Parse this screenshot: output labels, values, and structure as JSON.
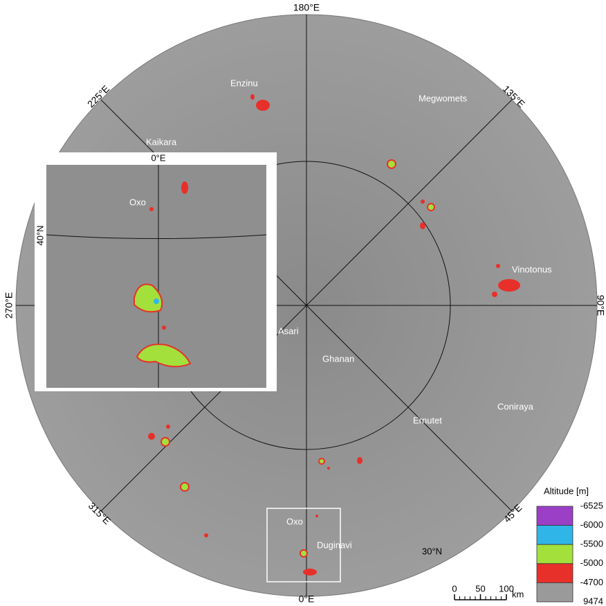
{
  "map": {
    "longitudes": {
      "top": "180°E",
      "upper_left": "225°E",
      "upper_right": "135°E",
      "left": "270°E",
      "right": "90°E",
      "lower_left": "315°E",
      "lower_right": "45°E",
      "bottom": "0°E"
    },
    "latitude_label": "30°N",
    "features": [
      "Enzinu",
      "Megwomets",
      "Kaikara",
      "Vinotonus",
      "Asari",
      "Ghanan",
      "Ernutet",
      "Coniraya",
      "Oxo",
      "Duginavi"
    ],
    "inset": {
      "longitude": "0°E",
      "feature": "Oxo",
      "latitude": "40°N"
    },
    "legend": {
      "title": "Altitude [m]",
      "levels": [
        -6525,
        -6000,
        -5500,
        -5000,
        -4700,
        9474
      ],
      "colors": [
        "#9b3fc7",
        "#2fb5e8",
        "#a3e03c",
        "#e8302a",
        "#9a9a9a"
      ]
    },
    "scale_bar": {
      "ticks": [
        0,
        50,
        100
      ],
      "unit": "km"
    }
  }
}
